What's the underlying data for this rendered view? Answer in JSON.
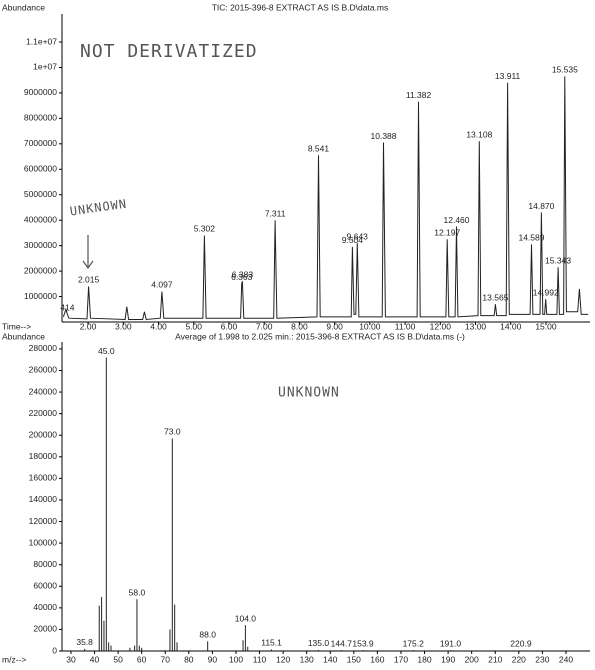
{
  "chart_data": [
    {
      "type": "line",
      "title": "TIC: 2015-396-8 EXTRACT AS IS B.D\\data.ms",
      "y_label": "Abundance",
      "x_label": "Time-->",
      "color": "#222222",
      "x": [
        1.3,
        1.37,
        1.414,
        1.46,
        1.97,
        2.015,
        2.07,
        3.05,
        3.1,
        3.15,
        3.55,
        3.6,
        3.65,
        4.05,
        4.097,
        4.15,
        5.26,
        5.302,
        5.35,
        6.33,
        6.363,
        6.383,
        6.42,
        7.27,
        7.311,
        7.36,
        8.5,
        8.541,
        8.59,
        9.47,
        9.504,
        9.55,
        9.6,
        9.643,
        9.69,
        10.35,
        10.388,
        10.44,
        11.34,
        11.382,
        11.43,
        12.16,
        12.197,
        12.24,
        12.42,
        12.46,
        12.5,
        13.07,
        13.108,
        13.15,
        13.53,
        13.565,
        13.6,
        13.87,
        13.911,
        13.96,
        14.55,
        14.589,
        14.63,
        14.83,
        14.87,
        14.91,
        14.96,
        14.992,
        15.02,
        15.31,
        15.343,
        15.38,
        15.5,
        15.535,
        15.58,
        15.9,
        15.95,
        16.0,
        16.2
      ],
      "values": [
        200000,
        500000,
        300000,
        150000,
        120000,
        1400000,
        150000,
        100000,
        600000,
        100000,
        100000,
        400000,
        100000,
        150000,
        1200000,
        150000,
        150000,
        3400000,
        150000,
        150000,
        1500000,
        1600000,
        150000,
        150000,
        4000000,
        150000,
        200000,
        6550000,
        200000,
        200000,
        2950000,
        300000,
        300000,
        3100000,
        200000,
        200000,
        7050000,
        200000,
        200000,
        8650000,
        200000,
        200000,
        3250000,
        200000,
        200000,
        3750000,
        200000,
        250000,
        7100000,
        250000,
        250000,
        700000,
        250000,
        250000,
        9400000,
        300000,
        300000,
        3050000,
        300000,
        300000,
        4300000,
        300000,
        300000,
        900000,
        300000,
        300000,
        2150000,
        300000,
        300000,
        9650000,
        400000,
        400000,
        1300000,
        300000,
        300000
      ],
      "xlim": [
        1.26,
        16.25
      ],
      "ylim": [
        0,
        12100000
      ],
      "xticks": [
        {
          "value": 2,
          "label": "2.00"
        },
        {
          "value": 3,
          "label": "3.00"
        },
        {
          "value": 4,
          "label": "4.00"
        },
        {
          "value": 5,
          "label": "5.00"
        },
        {
          "value": 6,
          "label": "6.00"
        },
        {
          "value": 7,
          "label": "7.00"
        },
        {
          "value": 8,
          "label": "8.00"
        },
        {
          "value": 9,
          "label": "9.00"
        },
        {
          "value": 10,
          "label": "10.00"
        },
        {
          "value": 11,
          "label": "11.00"
        },
        {
          "value": 12,
          "label": "12.00"
        },
        {
          "value": 13,
          "label": "13.00"
        },
        {
          "value": 14,
          "label": "14.00"
        },
        {
          "value": 15,
          "label": "15.00"
        }
      ],
      "yticks": [
        1000000,
        2000000,
        3000000,
        4000000,
        5000000,
        6000000,
        7000000,
        8000000,
        9000000,
        {
          "value": 10000000,
          "label": "1e+07"
        },
        {
          "value": 11000000,
          "label": "1.1e+07"
        }
      ],
      "annotations": [
        {
          "text": "414",
          "x": 1.414,
          "y": 300000
        },
        {
          "text": "2.015",
          "x": 2.015,
          "y": 1400000
        },
        {
          "text": "4.097",
          "x": 4.097,
          "y": 1200000
        },
        {
          "text": "5.302",
          "x": 5.302,
          "y": 3400000
        },
        {
          "text": "6.363",
          "x": 6.363,
          "y": 1500000
        },
        {
          "text": "6.383",
          "x": 6.383,
          "y": 1600000
        },
        {
          "text": "7.311",
          "x": 7.311,
          "y": 4000000
        },
        {
          "text": "8.541",
          "x": 8.541,
          "y": 6550000
        },
        {
          "text": "9.504",
          "x": 9.504,
          "y": 2950000
        },
        {
          "text": "9.643",
          "x": 9.643,
          "y": 3100000
        },
        {
          "text": "10.388",
          "x": 10.388,
          "y": 7050000
        },
        {
          "text": "11.382",
          "x": 11.382,
          "y": 8650000
        },
        {
          "text": "12.197",
          "x": 12.197,
          "y": 3250000
        },
        {
          "text": "12.460",
          "x": 12.46,
          "y": 3750000
        },
        {
          "text": "13.108",
          "x": 13.108,
          "y": 7100000
        },
        {
          "text": "13.565",
          "x": 13.565,
          "y": 700000
        },
        {
          "text": "13.911",
          "x": 13.911,
          "y": 9400000
        },
        {
          "text": "14.589",
          "x": 14.589,
          "y": 3050000
        },
        {
          "text": "14.870",
          "x": 14.87,
          "y": 4300000
        },
        {
          "text": "14.992",
          "x": 14.992,
          "y": 900000
        },
        {
          "text": "15.343",
          "x": 15.343,
          "y": 2150000
        },
        {
          "text": "15.535",
          "x": 15.535,
          "y": 9650000
        }
      ],
      "notes": [
        "NOT DERIVATIZED",
        "UNKNOWN"
      ]
    },
    {
      "type": "bar",
      "title": "Average of 1.998 to 2.025 min.: 2015-396-8 EXTRACT AS IS B.D\\data.ms (-)",
      "y_label": "Abundance",
      "x_label": "m/z-->",
      "color": "#222222",
      "x": [
        35.8,
        42,
        43,
        44,
        45,
        46,
        47,
        55,
        57,
        58,
        59,
        60,
        72,
        73,
        74,
        75,
        88,
        103,
        104,
        105,
        115.1,
        135,
        144.7,
        153.9,
        175.2,
        191,
        220.9
      ],
      "values": [
        2000,
        42000,
        50000,
        28000,
        272000,
        8000,
        5000,
        3000,
        5000,
        48000,
        5000,
        3000,
        20000,
        197000,
        43000,
        8000,
        9000,
        10000,
        24000,
        4000,
        1500,
        1000,
        800,
        800,
        800,
        800,
        600
      ],
      "peak_labels": [
        "35.8",
        null,
        null,
        null,
        "45.0",
        null,
        null,
        null,
        null,
        "58.0",
        null,
        null,
        null,
        "73.0",
        null,
        null,
        "88.0",
        null,
        "104.0",
        null,
        "115.1",
        "135.0",
        "144.7",
        "153.9",
        "175.2",
        "191.0",
        "220.9"
      ],
      "xlim": [
        26.2,
        250.2
      ],
      "ylim": [
        0,
        286400
      ],
      "xticks": [
        30,
        40,
        50,
        60,
        70,
        80,
        90,
        100,
        110,
        120,
        130,
        140,
        150,
        160,
        170,
        180,
        190,
        200,
        210,
        220,
        230,
        240
      ],
      "yticks": [
        0,
        20000,
        40000,
        60000,
        80000,
        100000,
        120000,
        140000,
        160000,
        180000,
        200000,
        220000,
        240000,
        260000,
        280000
      ],
      "notes": [
        "UNKNOWN"
      ]
    }
  ]
}
